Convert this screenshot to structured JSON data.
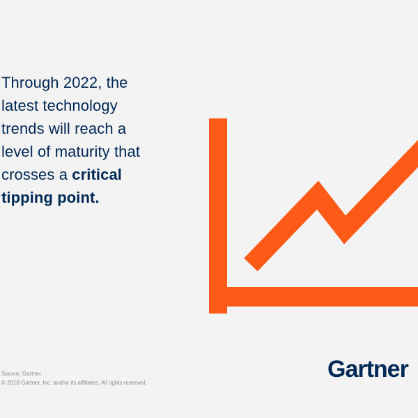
{
  "quote": {
    "line1": "Through 2022, the",
    "line2": "latest technology",
    "line3": "trends will reach a",
    "line4": "level of maturity that",
    "line5_regular": "crosses a ",
    "line5_bold": "critical",
    "line6_bold": "tipping point."
  },
  "source": {
    "line1": "Source: Gartner",
    "line2": "© 2018 Gartner, Inc. and/or its affiliates. All rights reserved."
  },
  "logo": {
    "text": "Gartner"
  },
  "colors": {
    "background": "#f3f3f3",
    "navy": "#002856",
    "accent_orange": "#fc5a16",
    "muted_gray": "#8a8a8a"
  },
  "graphic": {
    "icon": "trend-up-chart-icon"
  }
}
